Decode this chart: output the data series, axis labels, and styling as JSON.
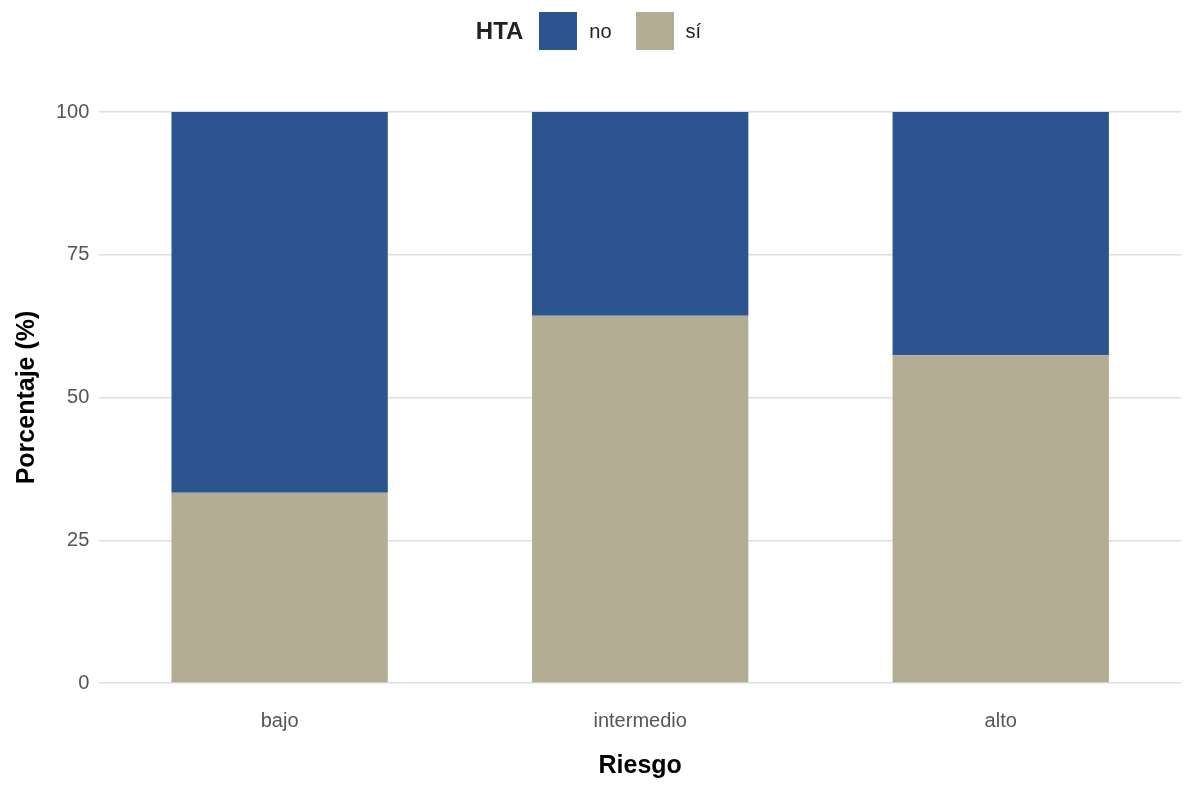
{
  "chart_data": {
    "type": "bar",
    "stacked": true,
    "xlabel": "Riesgo",
    "ylabel": "Porcentaje (%)",
    "legend_title": "HTA",
    "legend": "top",
    "categories": [
      "bajo",
      "intermedio",
      "alto"
    ],
    "series": [
      {
        "name": "sí",
        "color": "#b3ad93",
        "values": [
          33.3,
          64.3,
          57.4
        ]
      },
      {
        "name": "no",
        "color": "#2c5491",
        "values": [
          66.7,
          35.7,
          42.6
        ]
      }
    ],
    "ylim": [
      0,
      100
    ],
    "yticks": [
      0,
      25,
      50,
      75,
      100
    ],
    "grid": "y"
  }
}
